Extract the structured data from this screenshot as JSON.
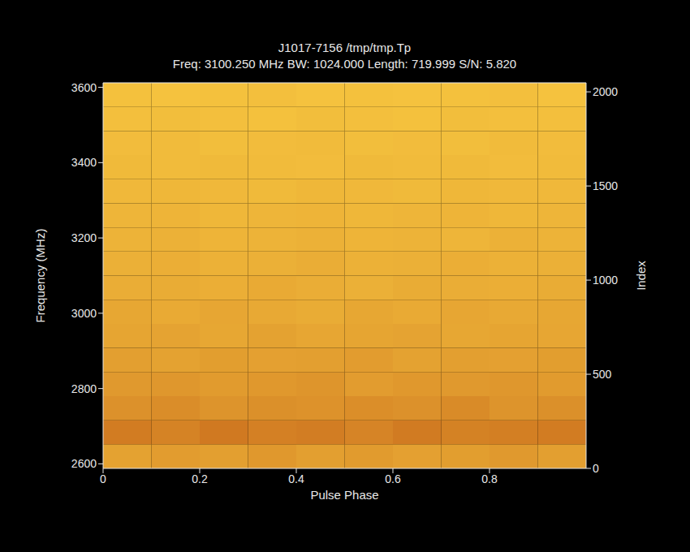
{
  "chart_data": {
    "type": "heatmap",
    "title": "J1017-7156 /tmp/tmp.Tp",
    "subtitle": "Freq: 3100.250 MHz BW: 1024.000 Length: 719.999 S/N: 5.820",
    "x_label": "Pulse Phase",
    "y_label": "Frequency (MHz)",
    "y2_label": "Index",
    "xlim": [
      0,
      1
    ],
    "xticks": [
      0,
      0.2,
      0.4,
      0.6,
      0.8
    ],
    "ylim": [
      2588,
      3612
    ],
    "yticks": [
      2600,
      2800,
      3000,
      3200,
      3400,
      3600
    ],
    "y2lim": [
      0,
      2048
    ],
    "y2ticks": [
      0,
      500,
      1000,
      1500,
      2000
    ],
    "x_bins": [
      0,
      0.1,
      0.2,
      0.3,
      0.4,
      0.5,
      0.6,
      0.7,
      0.8,
      0.9,
      1
    ],
    "y_bins": [
      2588,
      2652,
      2716,
      2780,
      2844,
      2908,
      2972,
      3036,
      3100,
      3164,
      3228,
      3292,
      3356,
      3420,
      3484,
      3548,
      3612
    ],
    "cells": [
      [
        0.62,
        0.58,
        0.6,
        0.55,
        0.6,
        0.57,
        0.61,
        0.59,
        0.56,
        0.6
      ],
      [
        0.35,
        0.4,
        0.33,
        0.38,
        0.36,
        0.41,
        0.34,
        0.39,
        0.37,
        0.35
      ],
      [
        0.5,
        0.47,
        0.52,
        0.49,
        0.51,
        0.48,
        0.5,
        0.46,
        0.52,
        0.49
      ],
      [
        0.56,
        0.54,
        0.57,
        0.55,
        0.53,
        0.58,
        0.55,
        0.56,
        0.54,
        0.57
      ],
      [
        0.6,
        0.62,
        0.59,
        0.61,
        0.6,
        0.58,
        0.62,
        0.6,
        0.61,
        0.59
      ],
      [
        0.64,
        0.63,
        0.66,
        0.62,
        0.65,
        0.64,
        0.63,
        0.66,
        0.64,
        0.65
      ],
      [
        0.66,
        0.68,
        0.65,
        0.67,
        0.69,
        0.66,
        0.68,
        0.65,
        0.67,
        0.66
      ],
      [
        0.7,
        0.69,
        0.71,
        0.68,
        0.7,
        0.72,
        0.69,
        0.7,
        0.71,
        0.69
      ],
      [
        0.72,
        0.71,
        0.73,
        0.72,
        0.7,
        0.73,
        0.72,
        0.71,
        0.73,
        0.72
      ],
      [
        0.74,
        0.73,
        0.75,
        0.74,
        0.73,
        0.75,
        0.74,
        0.76,
        0.73,
        0.74
      ],
      [
        0.76,
        0.75,
        0.77,
        0.76,
        0.75,
        0.77,
        0.76,
        0.75,
        0.77,
        0.76
      ],
      [
        0.78,
        0.77,
        0.78,
        0.79,
        0.77,
        0.78,
        0.79,
        0.77,
        0.78,
        0.78
      ],
      [
        0.79,
        0.8,
        0.79,
        0.8,
        0.81,
        0.79,
        0.8,
        0.79,
        0.81,
        0.8
      ],
      [
        0.81,
        0.8,
        0.82,
        0.81,
        0.8,
        0.82,
        0.81,
        0.82,
        0.8,
        0.81
      ],
      [
        0.83,
        0.82,
        0.83,
        0.84,
        0.82,
        0.83,
        0.84,
        0.82,
        0.83,
        0.83
      ],
      [
        0.84,
        0.85,
        0.84,
        0.83,
        0.85,
        0.84,
        0.85,
        0.84,
        0.83,
        0.85
      ]
    ]
  }
}
